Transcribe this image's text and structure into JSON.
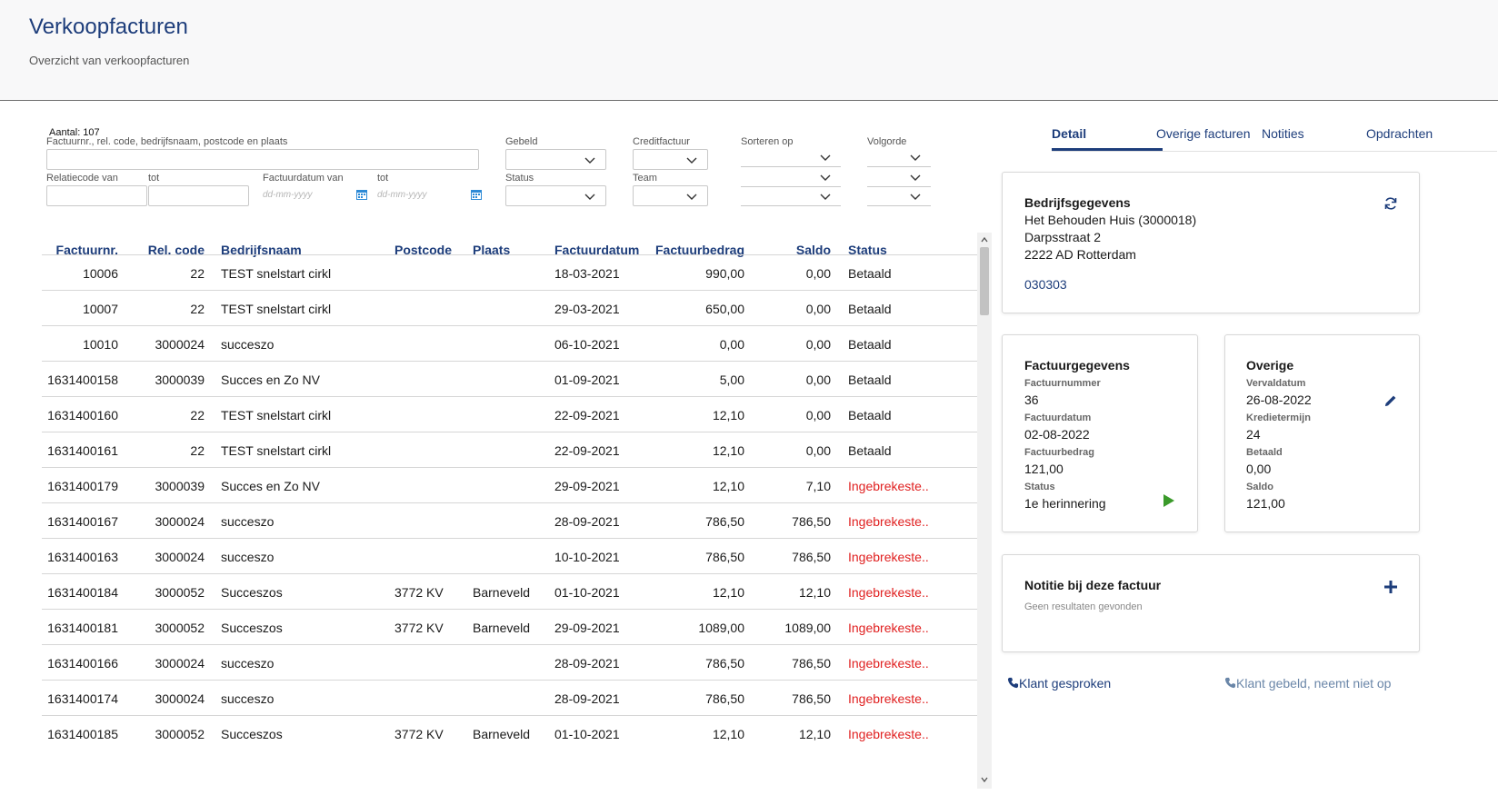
{
  "header": {
    "title": "Verkoopfacturen",
    "subtitle": "Overzicht van verkoopfacturen"
  },
  "filters": {
    "count_label": "Aantal: 107",
    "search_label": "Factuurnr., rel. code, bedrijfsnaam, postcode en plaats",
    "search_value": "",
    "gebeld_label": "Gebeld",
    "creditfactuur_label": "Creditfactuur",
    "sorteren_label": "Sorteren op",
    "volgorde_label": "Volgorde",
    "relatiecode_van_label": "Relatiecode van",
    "tot_label": "tot",
    "factuurdatum_van_label": "Factuurdatum van",
    "tot2_label": "tot",
    "date_placeholder": "dd-mm-yyyy",
    "status_label": "Status",
    "team_label": "Team"
  },
  "table": {
    "headers": [
      "Factuurnr.",
      "Rel. code",
      "Bedrijfsnaam",
      "Postcode",
      "Plaats",
      "Factuurdatum",
      "Factuurbedrag",
      "Saldo",
      "Status"
    ],
    "rows": [
      [
        "10006",
        "22",
        "TEST snelstart cirkl",
        "",
        "",
        "18-03-2021",
        "990,00",
        "0,00",
        "Betaald"
      ],
      [
        "10007",
        "22",
        "TEST snelstart cirkl",
        "",
        "",
        "29-03-2021",
        "650,00",
        "0,00",
        "Betaald"
      ],
      [
        "10010",
        "3000024",
        "succeszo",
        "",
        "",
        "06-10-2021",
        "0,00",
        "0,00",
        "Betaald"
      ],
      [
        "1631400158",
        "3000039",
        "Succes en Zo NV",
        "",
        "",
        "01-09-2021",
        "5,00",
        "0,00",
        "Betaald"
      ],
      [
        "1631400160",
        "22",
        "TEST snelstart cirkl",
        "",
        "",
        "22-09-2021",
        "12,10",
        "0,00",
        "Betaald"
      ],
      [
        "1631400161",
        "22",
        "TEST snelstart cirkl",
        "",
        "",
        "22-09-2021",
        "12,10",
        "0,00",
        "Betaald"
      ],
      [
        "1631400179",
        "3000039",
        "Succes en Zo NV",
        "",
        "",
        "29-09-2021",
        "12,10",
        "7,10",
        "Ingebrekeste.."
      ],
      [
        "1631400167",
        "3000024",
        "succeszo",
        "",
        "",
        "28-09-2021",
        "786,50",
        "786,50",
        "Ingebrekeste.."
      ],
      [
        "1631400163",
        "3000024",
        "succeszo",
        "",
        "",
        "10-10-2021",
        "786,50",
        "786,50",
        "Ingebrekeste.."
      ],
      [
        "1631400184",
        "3000052",
        "Succeszos",
        "3772 KV",
        "Barneveld",
        "01-10-2021",
        "12,10",
        "12,10",
        "Ingebrekeste.."
      ],
      [
        "1631400181",
        "3000052",
        "Succeszos",
        "3772 KV",
        "Barneveld",
        "29-09-2021",
        "1089,00",
        "1089,00",
        "Ingebrekeste.."
      ],
      [
        "1631400166",
        "3000024",
        "succeszo",
        "",
        "",
        "28-09-2021",
        "786,50",
        "786,50",
        "Ingebrekeste.."
      ],
      [
        "1631400174",
        "3000024",
        "succeszo",
        "",
        "",
        "28-09-2021",
        "786,50",
        "786,50",
        "Ingebrekeste.."
      ],
      [
        "1631400185",
        "3000052",
        "Succeszos",
        "3772 KV",
        "Barneveld",
        "01-10-2021",
        "12,10",
        "12,10",
        "Ingebrekeste.."
      ]
    ]
  },
  "tabs": {
    "detail": "Detail",
    "overige": "Overige facturen",
    "notities": "Notities",
    "opdrachten": "Opdrachten"
  },
  "bedrijf": {
    "title": "Bedrijfsgegevens",
    "name": "Het Behouden Huis (3000018)",
    "street": "Darpsstraat 2",
    "city": "2222 AD Rotterdam",
    "phone": "030303"
  },
  "factuur": {
    "title": "Factuurgegevens",
    "nummer_label": "Factuurnummer",
    "nummer": "36",
    "datum_label": "Factuurdatum",
    "datum": "02-08-2022",
    "bedrag_label": "Factuurbedrag",
    "bedrag": "121,00",
    "status_label": "Status",
    "status": "1e herinnering"
  },
  "overige": {
    "title": "Overige",
    "verval_label": "Vervaldatum",
    "verval": "26-08-2022",
    "krediet_label": "Kredietermijn",
    "krediet": "24",
    "betaald_label": "Betaald",
    "betaald": "0,00",
    "saldo_label": "Saldo",
    "saldo": "121,00"
  },
  "notitie": {
    "title": "Notitie bij deze factuur",
    "empty": "Geen resultaten gevonden"
  },
  "actions": {
    "gesproken": "Klant gesproken",
    "gebeld": "Klant gebeld, neemt niet op"
  },
  "colors": {
    "accent": "#1d3d7b",
    "status_red": "#e02020",
    "play_green": "#3a9a2a"
  },
  "icons": [
    "refresh-icon",
    "edit-icon",
    "play-icon",
    "plus-icon",
    "phone-icon",
    "calendar-icon",
    "chevron-down-icon"
  ]
}
